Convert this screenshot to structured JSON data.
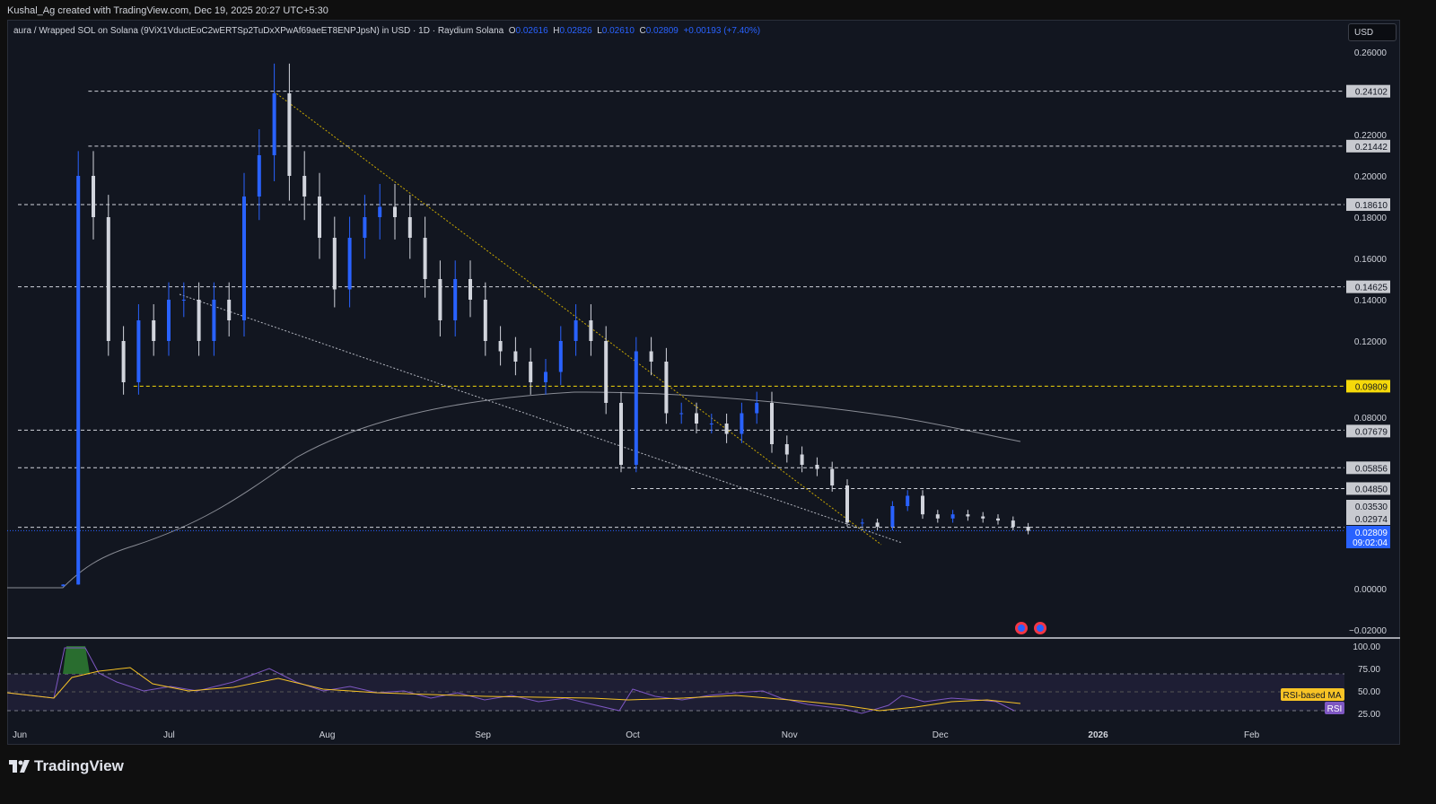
{
  "credit": "Kushal_Ag created with TradingView.com, Dec 19, 2025 20:27 UTC+5:30",
  "legend": {
    "symbol": "aura / Wrapped SOL on Solana (9ViX1VductEoC2wERTSp2TuDxXPwAf69aeET8ENPJpsN) in USD · 1D · Raydium Solana",
    "o_label": "O",
    "o": "0.02616",
    "h_label": "H",
    "h": "0.02826",
    "l_label": "L",
    "l": "0.02610",
    "c_label": "C",
    "c": "0.02809",
    "change": "+0.00193 (+7.40%)"
  },
  "currency": "USD",
  "brand": "TradingView",
  "colors": {
    "up": "#2962ff",
    "down": "#d1d4dc",
    "level": "#d1d4dc",
    "yellow": "#f5d90a",
    "ma": "#8a8d96"
  },
  "chart_data": {
    "type": "candlestick",
    "ylim": [
      -0.02,
      0.26
    ],
    "y_ticks": [
      "0.26000",
      "0.22000",
      "0.20000",
      "0.18000",
      "0.16000",
      "0.14000",
      "0.12000",
      "0.08000",
      "0.00000",
      "−0.02000"
    ],
    "y_tick_values": [
      0.26,
      0.22,
      0.2,
      0.18,
      0.16,
      0.14,
      0.12,
      0.08,
      0.0,
      -0.02
    ],
    "x_ticks": [
      "Jun",
      "Jul",
      "Aug",
      "Sep",
      "Oct",
      "Nov",
      "Dec",
      "2026",
      "Feb"
    ],
    "x_tick_days": [
      0,
      30,
      61,
      92,
      122,
      153,
      183,
      214,
      245
    ],
    "candle_days": [
      9,
      12,
      15,
      18,
      21,
      24,
      27,
      30,
      33,
      36,
      39,
      42,
      45,
      48,
      51,
      54,
      57,
      60,
      63,
      66,
      69,
      72,
      75,
      78,
      81,
      84,
      87,
      90,
      93,
      96,
      99,
      102,
      105,
      108,
      111,
      114,
      117,
      120,
      123,
      126,
      129,
      132,
      135,
      138,
      141,
      144,
      147,
      150,
      153,
      156,
      159,
      162,
      165,
      168,
      171,
      174,
      177,
      180,
      183,
      186,
      189,
      192,
      195,
      198,
      201
    ],
    "closes": [
      0.002,
      0.2,
      0.18,
      0.12,
      0.1,
      0.13,
      0.12,
      0.14,
      0.14,
      0.12,
      0.14,
      0.13,
      0.19,
      0.21,
      0.24,
      0.2,
      0.19,
      0.17,
      0.145,
      0.17,
      0.18,
      0.185,
      0.18,
      0.17,
      0.15,
      0.13,
      0.15,
      0.14,
      0.12,
      0.115,
      0.11,
      0.1,
      0.105,
      0.12,
      0.13,
      0.12,
      0.09,
      0.06,
      0.115,
      0.11,
      0.085,
      0.085,
      0.08,
      0.08,
      0.075,
      0.085,
      0.09,
      0.07,
      0.065,
      0.06,
      0.058,
      0.05,
      0.032,
      0.032,
      0.03,
      0.04,
      0.045,
      0.036,
      0.034,
      0.036,
      0.035,
      0.034,
      0.033,
      0.03,
      0.028
    ],
    "levels": [
      {
        "value": 0.24102,
        "label": "0.24102",
        "color": "#d1d4dc",
        "from_day": 14
      },
      {
        "value": 0.21442,
        "label": "0.21442",
        "color": "#d1d4dc",
        "from_day": 14
      },
      {
        "value": 0.1861,
        "label": "0.18610",
        "color": "#d1d4dc",
        "from_day": 0
      },
      {
        "value": 0.14625,
        "label": "0.14625",
        "color": "#d1d4dc",
        "from_day": 0
      },
      {
        "value": 0.09809,
        "label": "0.09809",
        "color": "#f5d90a",
        "from_day": 23
      },
      {
        "value": 0.07679,
        "label": "0.07679",
        "color": "#d1d4dc",
        "from_day": 0
      },
      {
        "value": 0.05856,
        "label": "0.05856",
        "color": "#d1d4dc",
        "from_day": 0
      },
      {
        "value": 0.0485,
        "label": "0.04850",
        "color": "#d1d4dc",
        "from_day": 122
      },
      {
        "value": 0.02974,
        "label": "0.02974",
        "color": "#d1d4dc",
        "from_day": 0
      }
    ],
    "extra_label": "0.03530",
    "last_price": {
      "value": 0.02809,
      "label": "0.02809",
      "countdown": "09:02:04"
    },
    "rsi": {
      "ticks": [
        "100.00",
        "75.00",
        "50.00",
        "25.00"
      ],
      "ma_label": "RSI-based MA",
      "rsi_label": "RSI"
    }
  }
}
